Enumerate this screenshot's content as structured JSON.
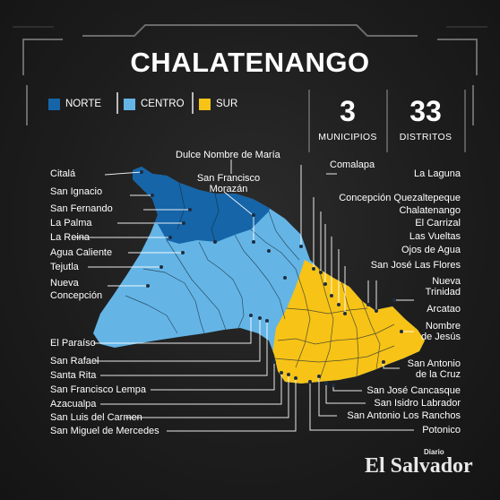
{
  "title": "CHALATENANGO",
  "legend": [
    {
      "label": "NORTE",
      "color": "#1565a8"
    },
    {
      "label": "CENTRO",
      "color": "#64b5e6"
    },
    {
      "label": "SUR",
      "color": "#f7c316"
    }
  ],
  "stats": [
    {
      "value": "3",
      "label": "MUNICIPIOS"
    },
    {
      "value": "33",
      "label": "DISTRITOS"
    }
  ],
  "labels": {
    "citala": "Citalá",
    "san_ignacio": "San Ignacio",
    "san_fernando": "San Fernando",
    "la_palma": "La Palma",
    "la_reina": "La Reina",
    "agua_caliente": "Agua Caliente",
    "tejutla": "Tejutla",
    "nueva_concepcion_1": "Nueva",
    "nueva_concepcion_2": "Concepción",
    "dulce_nombre": "Dulce Nombre de María",
    "san_francisco_morazan_1": "San Francisco",
    "san_francisco_morazan_2": "Morazán",
    "comalapa": "Comalapa",
    "la_laguna": "La Laguna",
    "concepcion_quezaltepeque": "Concepción Quezaltepeque",
    "chalatenango": "Chalatenango",
    "el_carrizal": "El Carrizal",
    "las_vueltas": "Las Vueltas",
    "ojos_de_agua": "Ojos de Agua",
    "san_jose_las_flores": "San José Las Flores",
    "nueva_trinidad_1": "Nueva",
    "nueva_trinidad_2": "Trinidad",
    "arcatao": "Arcatao",
    "nombre_de_jesus_1": "Nombre",
    "nombre_de_jesus_2": "de Jesús",
    "el_paraiso": "El Paraíso",
    "san_rafael": "San Rafael",
    "santa_rita": "Santa Rita",
    "san_francisco_lempa": "San Francisco Lempa",
    "azacualpa": "Azacualpa",
    "san_luis_del_carmen": "San Luis del Carmen",
    "san_miguel_de_mercedes": "San Miguel de Mercedes",
    "san_antonio_de_la_cruz_1": "San Antonio",
    "san_antonio_de_la_cruz_2": "de la Cruz",
    "san_jose_cancasque": "San José Cancasque",
    "san_isidro_labrador": "San Isidro Labrador",
    "san_antonio_los_ranchos": "San Antonio Los Ranchos",
    "potonico": "Potonico"
  },
  "brand": {
    "main": "El Salvador",
    "small": "Diario"
  }
}
